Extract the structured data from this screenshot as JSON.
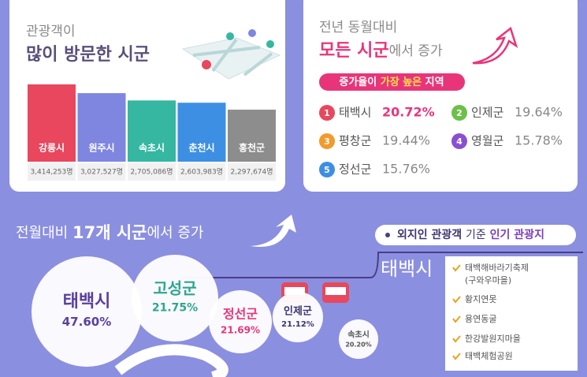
{
  "chart_data": {
    "type": "bar",
    "subtitle": "관광객이",
    "title": "많이 방문한 시군",
    "categories": [
      "강릉시",
      "원주시",
      "속초시",
      "춘천시",
      "홍천군"
    ],
    "values": [
      3414253,
      3027527,
      2705086,
      2603983,
      2297674
    ],
    "value_labels": [
      "3,414,253명",
      "3,027,527명",
      "2,705,086명",
      "2,603,983명",
      "2,297,674명"
    ],
    "colors": [
      "#e8475d",
      "#7f86e0",
      "#35b7a2",
      "#3d8fe3",
      "#8d8d8d"
    ]
  },
  "yoy": {
    "subtitle": "전년 동월대비",
    "title_highlight": "모든 시군",
    "title_rest": "에서 증가",
    "badge_start": "증가율이",
    "badge_highlight": "가장 높은",
    "badge_end": "지역",
    "items": [
      {
        "rank": "1",
        "name": "태백시",
        "rate": "20.72%"
      },
      {
        "rank": "2",
        "name": "인제군",
        "rate": "19.64%"
      },
      {
        "rank": "3",
        "name": "평창군",
        "rate": "19.44%"
      },
      {
        "rank": "4",
        "name": "영월군",
        "rate": "15.78%"
      },
      {
        "rank": "5",
        "name": "정선군",
        "rate": "15.76%"
      }
    ]
  },
  "mom": {
    "title_start": "전월대비",
    "title_highlight": "17개 시군",
    "title_end": "에서 증가",
    "bubbles": [
      {
        "name": "태백시",
        "rate": "47.60%"
      },
      {
        "name": "고성군",
        "rate": "21.75%"
      },
      {
        "name": "정선군",
        "rate": "21.69%"
      },
      {
        "name": "인제군",
        "rate": "21.12%"
      },
      {
        "name": "속초시",
        "rate": "20.20%"
      }
    ]
  },
  "popular": {
    "heading_start": "외지인 관광객",
    "heading_mid": "기준",
    "heading_highlight": "인기 관광지",
    "city": "태백시",
    "spots": [
      "태백해바라기축제",
      "(구와우마을)",
      "황지연못",
      "용연동굴",
      "한강발원지마을",
      "태백체험공원"
    ]
  }
}
